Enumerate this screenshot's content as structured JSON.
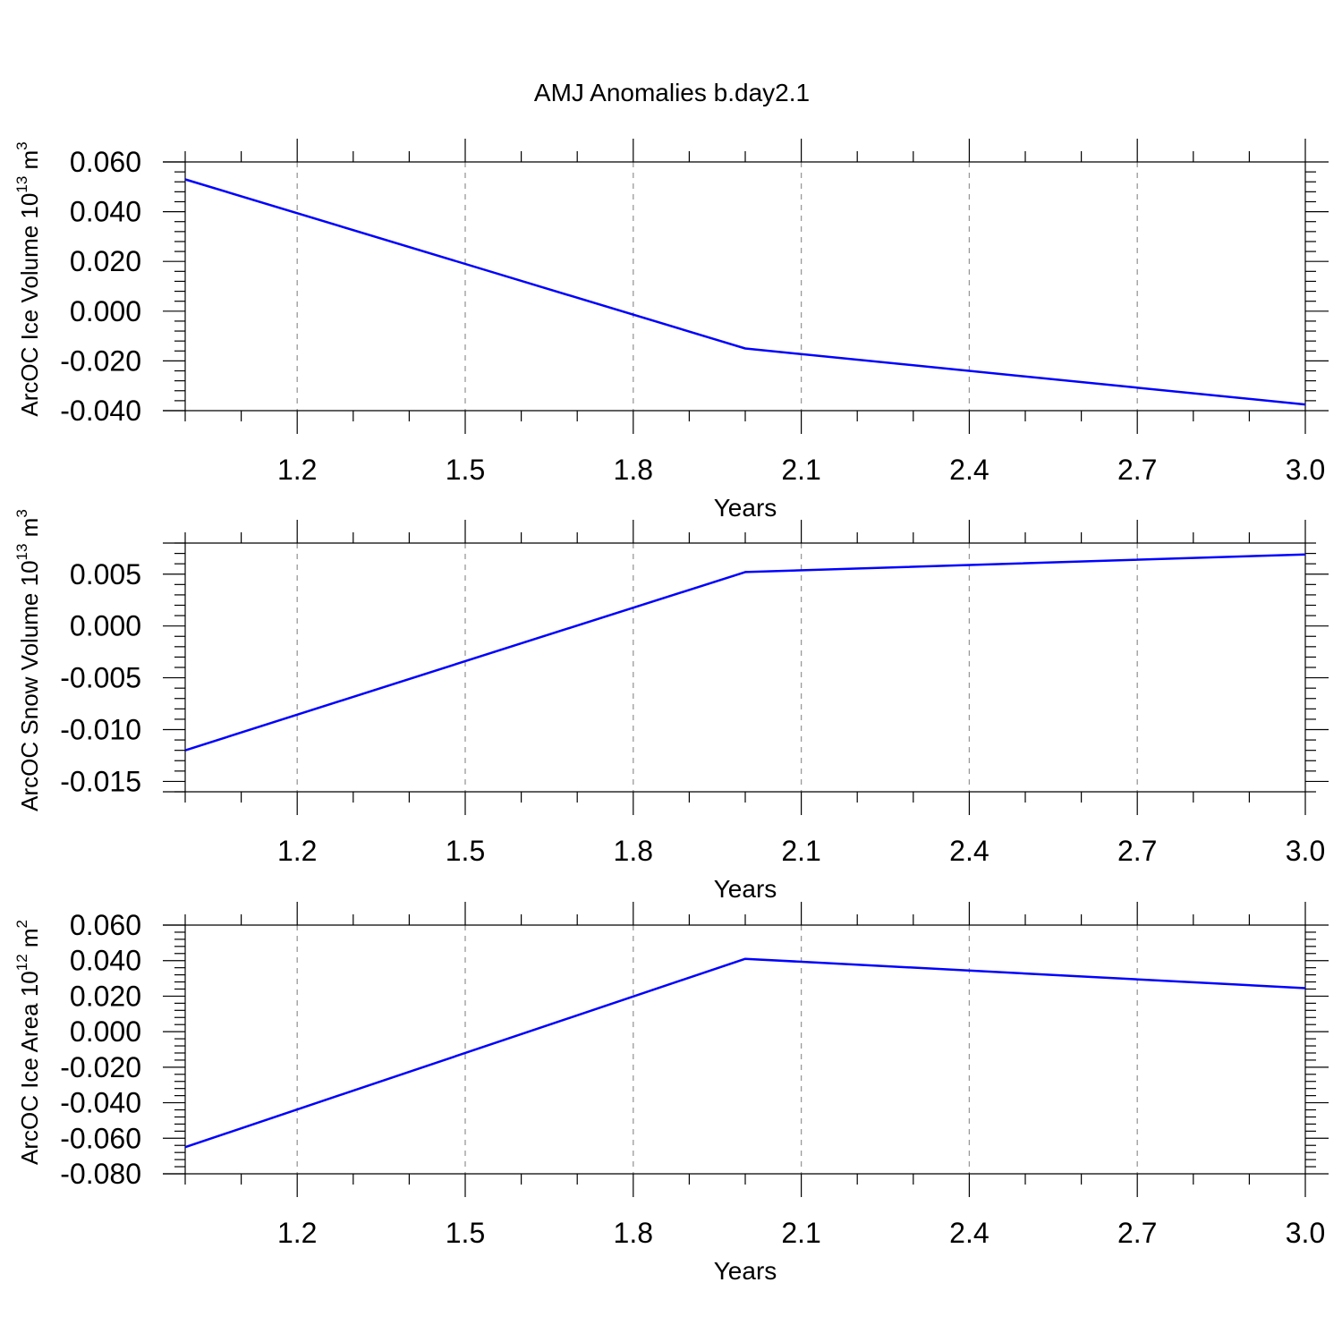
{
  "title": "AMJ Anomalies b.day2.1",
  "chart_data": [
    {
      "type": "line",
      "title": "AMJ Anomalies b.day2.1",
      "xlabel": "Years",
      "ylabel": "ArcOC Ice Volume 10",
      "ylabel_exp": "13",
      "ylabel_unit": " m",
      "ylabel_unit_exp": "3",
      "xlim": [
        1.0,
        3.0
      ],
      "ylim": [
        -0.04,
        0.06
      ],
      "x_ticks": [
        "1.2",
        "1.5",
        "1.8",
        "2.1",
        "2.4",
        "2.7",
        "3.0"
      ],
      "y_ticks": [
        "0.060",
        "0.040",
        "0.020",
        "0.000",
        "-0.020",
        "-0.040"
      ],
      "grid": "vertical dashed",
      "series": [
        {
          "color": "#0000ff",
          "x": [
            1.0,
            2.0,
            3.0
          ],
          "y": [
            0.053,
            -0.015,
            -0.0375
          ]
        }
      ]
    },
    {
      "type": "line",
      "xlabel": "Years",
      "ylabel": "ArcOC Snow Volume 10",
      "ylabel_exp": "13",
      "ylabel_unit": " m",
      "ylabel_unit_exp": "3",
      "xlim": [
        1.0,
        3.0
      ],
      "ylim": [
        -0.016,
        0.008
      ],
      "x_ticks": [
        "1.2",
        "1.5",
        "1.8",
        "2.1",
        "2.4",
        "2.7",
        "3.0"
      ],
      "y_ticks": [
        "0.005",
        "0.000",
        "-0.005",
        "-0.010",
        "-0.015"
      ],
      "grid": "vertical dashed",
      "series": [
        {
          "color": "#0000ff",
          "x": [
            1.0,
            2.0,
            3.0
          ],
          "y": [
            -0.012,
            0.0052,
            0.0069
          ]
        }
      ]
    },
    {
      "type": "line",
      "xlabel": "Years",
      "ylabel": "ArcOC Ice Area 10",
      "ylabel_exp": "12",
      "ylabel_unit": " m",
      "ylabel_unit_exp": "2",
      "xlim": [
        1.0,
        3.0
      ],
      "ylim": [
        -0.08,
        0.06
      ],
      "x_ticks": [
        "1.2",
        "1.5",
        "1.8",
        "2.1",
        "2.4",
        "2.7",
        "3.0"
      ],
      "y_ticks": [
        "0.060",
        "0.040",
        "0.020",
        "0.000",
        "-0.020",
        "-0.040",
        "-0.060",
        "-0.080"
      ],
      "grid": "vertical dashed",
      "series": [
        {
          "color": "#0000ff",
          "x": [
            1.0,
            2.0,
            3.0
          ],
          "y": [
            -0.065,
            0.041,
            0.0245
          ]
        }
      ]
    }
  ]
}
